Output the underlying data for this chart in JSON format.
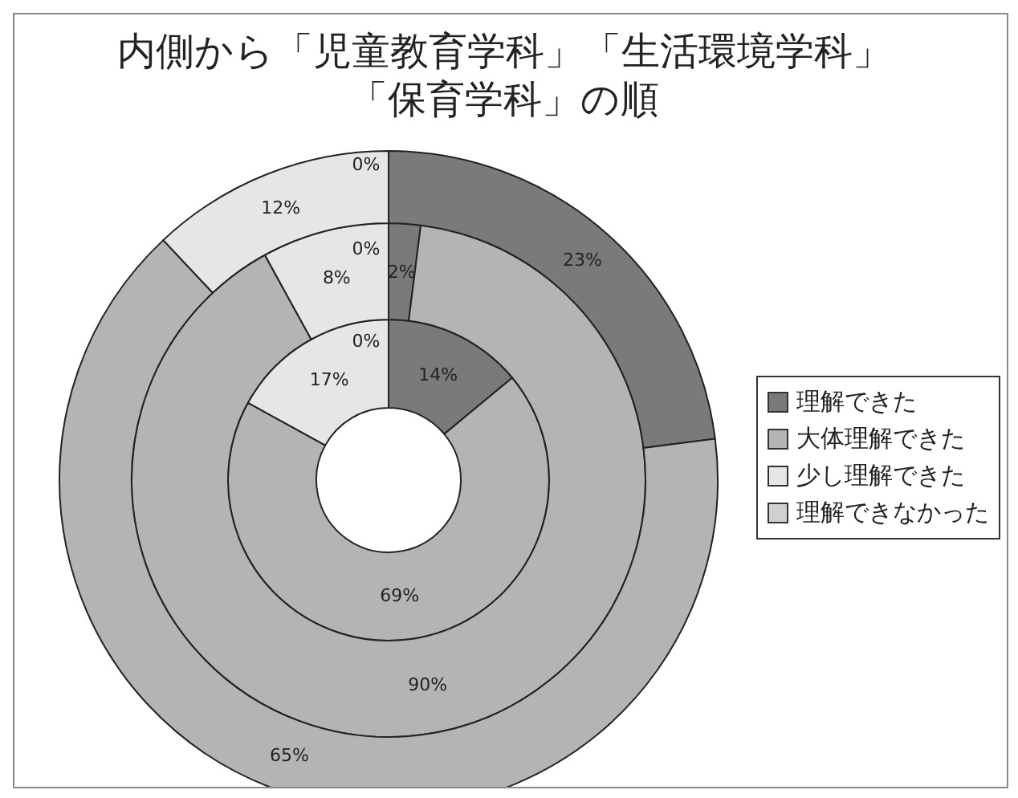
{
  "chart_data": {
    "type": "donut",
    "title": "内側から「児童教育学科」「生活環境学科」「保育学科」の順",
    "categories": [
      "理解できた",
      "大体理解できた",
      "少し理解できた",
      "理解できなかった"
    ],
    "colors": [
      "#7a7a7a",
      "#b4b4b4",
      "#e6e6e6",
      "#d0d0d0"
    ],
    "series": [
      {
        "values": [
          14,
          69,
          17,
          0
        ],
        "value_labels": [
          "14%",
          "69%",
          "17%",
          "0%"
        ]
      },
      {
        "values": [
          2,
          90,
          8,
          0
        ],
        "value_labels": [
          "2%",
          "90%",
          "8%",
          "0%"
        ]
      },
      {
        "values": [
          23,
          65,
          12,
          0
        ],
        "value_labels": [
          "23%",
          "65%",
          "12%",
          "0%"
        ]
      }
    ],
    "legend": "right"
  }
}
